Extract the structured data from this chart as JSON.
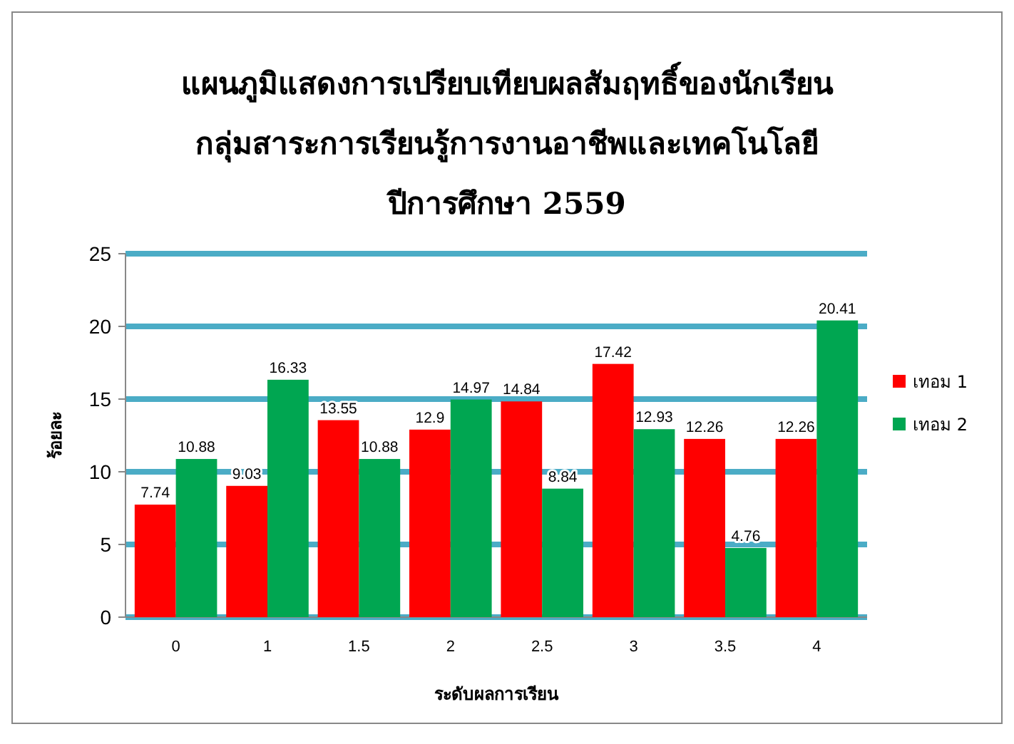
{
  "chart_data": {
    "type": "bar",
    "title": "แผนภูมิแสดงการเปรียบเทียบผลสัมฤทธิ์ของนักเรียน\nกลุ่มสาระการเรียนรู้การงานอาชีพและเทคโนโลยี\nปีการศึกษา 2559",
    "xlabel": "ระดับผลการเรียน",
    "ylabel": "ร้อยละ",
    "categories": [
      "0",
      "1",
      "1.5",
      "2",
      "2.5",
      "3",
      "3.5",
      "4"
    ],
    "series": [
      {
        "name": "เทอม 1",
        "color": "#ff0000",
        "values": [
          7.74,
          9.03,
          13.55,
          12.9,
          14.84,
          17.42,
          12.26,
          12.26
        ]
      },
      {
        "name": "เทอม 2",
        "color": "#00a651",
        "values": [
          10.88,
          16.33,
          10.88,
          14.97,
          8.84,
          12.93,
          4.76,
          20.41
        ]
      }
    ],
    "ylim": [
      0,
      25
    ],
    "yticks": [
      0,
      5,
      10,
      15,
      20,
      25
    ],
    "grid": "y",
    "legend": "right",
    "data_labels": true
  }
}
